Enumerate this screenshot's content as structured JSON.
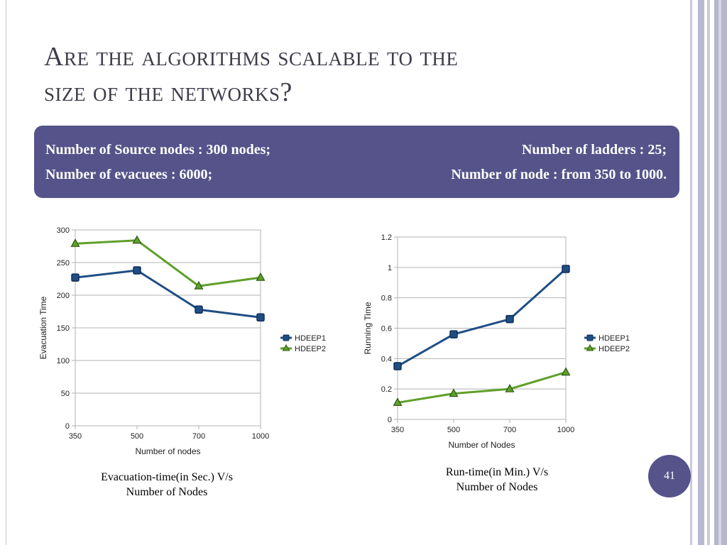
{
  "slide": {
    "title_line1": "Are the algorithms scalable to the",
    "title_line2": "size of the networks?",
    "info": {
      "source_nodes": "Number of Source nodes : 300 nodes;",
      "ladders": "Number of ladders : 25;",
      "evacuees": "Number of evacuees : 6000;",
      "nodes": "Number of node : from 350 to 1000."
    },
    "caption1_line1": "Evacuation-time(in Sec.) V/s",
    "caption1_line2": "Number of Nodes",
    "caption2_line1": "Run-time(in Min.) V/s",
    "caption2_line2": "Number of Nodes",
    "page_number": "41"
  },
  "colors": {
    "hdeep1": "#1f4e84",
    "hdeep2": "#5ea02a",
    "accent": "#55538a"
  },
  "chart_data": [
    {
      "type": "line",
      "categories": [
        "350",
        "500",
        "700",
        "1000"
      ],
      "series": [
        {
          "name": "HDEEP1",
          "values": [
            227,
            238,
            178,
            166
          ]
        },
        {
          "name": "HDEEP2",
          "values": [
            279,
            284,
            214,
            227
          ]
        }
      ],
      "xlabel": "Number of nodes",
      "ylabel": "Evacuation Time",
      "ylim": [
        0,
        300
      ],
      "yticks": [
        "0",
        "50",
        "100",
        "150",
        "200",
        "250",
        "300"
      ],
      "grid": true,
      "legend": "right"
    },
    {
      "type": "line",
      "categories": [
        "350",
        "500",
        "700",
        "1000"
      ],
      "series": [
        {
          "name": "HDEEP1",
          "values": [
            0.35,
            0.56,
            0.66,
            0.99
          ]
        },
        {
          "name": "HDEEP2",
          "values": [
            0.11,
            0.17,
            0.2,
            0.31
          ]
        }
      ],
      "xlabel": "Number of Nodes",
      "ylabel": "Running Time",
      "ylim": [
        0,
        1.2
      ],
      "yticks": [
        "0",
        "0.2",
        "0.4",
        "0.6",
        "0.8",
        "1",
        "1.2"
      ],
      "grid": true,
      "legend": "right"
    }
  ]
}
